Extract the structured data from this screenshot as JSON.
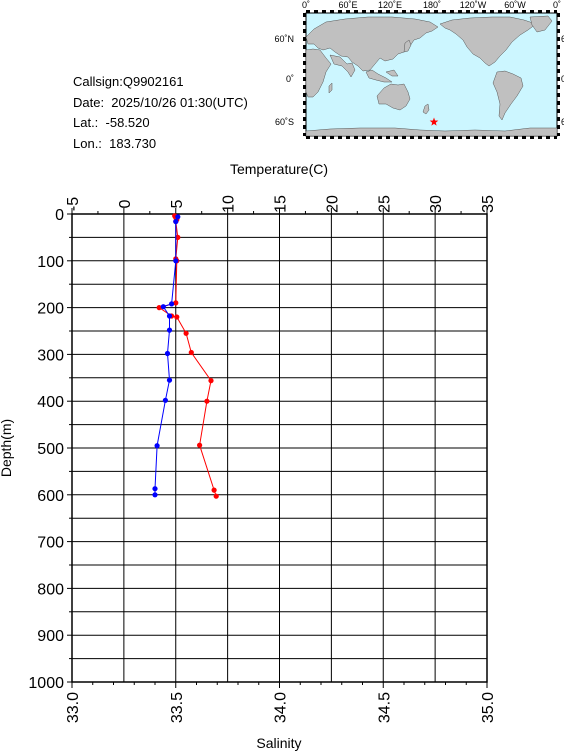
{
  "info": {
    "callsign": "Callsign:Q9902161",
    "date": "Date:  2025/10/26 01:30(UTC)",
    "lat": "Lat.:  -58.520",
    "lon": "Lon.:  183.730"
  },
  "map": {
    "lon_labels": [
      "0˚",
      "60˚E",
      "120˚E",
      "180˚",
      "120˚W",
      "60˚W",
      "0˚"
    ],
    "lat_labels": [
      "60˚N",
      "0˚",
      "60˚S"
    ],
    "marker": "star",
    "marker_color": "#ff0000",
    "ocean_color": "#ccf6ff",
    "land_color": "#c0c0c0"
  },
  "chart_data": {
    "type": "line",
    "title": "",
    "xlabel_top": "Temperature(C)",
    "xlabel_bottom": "Salinity",
    "ylabel": "Depth(m)",
    "temperature_ticks": [
      "-5",
      "0",
      "5",
      "10",
      "15",
      "20",
      "25",
      "30",
      "35"
    ],
    "salinity_ticks": [
      "33.0",
      "33.5",
      "34.0",
      "34.5",
      "35.0"
    ],
    "depth_ticks": [
      "0",
      "100",
      "200",
      "300",
      "400",
      "500",
      "600",
      "700",
      "800",
      "900",
      "1000"
    ],
    "temperature_range": [
      -5,
      35
    ],
    "salinity_range": [
      33.0,
      35.0
    ],
    "depth_range": [
      0,
      1000
    ],
    "grid": true,
    "series": [
      {
        "name": "",
        "axis": "temperature",
        "color": "#ff0000",
        "points": [
          [
            4.9,
            4
          ],
          [
            5.0,
            8
          ],
          [
            5.1,
            12
          ],
          [
            5.0,
            16
          ],
          [
            5.2,
            50
          ],
          [
            5.0,
            96
          ],
          [
            5.1,
            100
          ],
          [
            5.0,
            190
          ],
          [
            3.4,
            200
          ],
          [
            4.6,
            218
          ],
          [
            5.1,
            220
          ],
          [
            6.0,
            255
          ],
          [
            6.5,
            296
          ],
          [
            8.4,
            356
          ],
          [
            8.0,
            400
          ],
          [
            7.3,
            494
          ],
          [
            8.7,
            590
          ],
          [
            8.9,
            603
          ]
        ]
      },
      {
        "name": "",
        "axis": "salinity",
        "color": "#0000ff",
        "points": [
          [
            33.51,
            6
          ],
          [
            33.5,
            16
          ],
          [
            33.5,
            100
          ],
          [
            33.48,
            192
          ],
          [
            33.44,
            198
          ],
          [
            33.47,
            218
          ],
          [
            33.47,
            248
          ],
          [
            33.46,
            298
          ],
          [
            33.47,
            355
          ],
          [
            33.45,
            398
          ],
          [
            33.41,
            495
          ],
          [
            33.4,
            587
          ],
          [
            33.4,
            600
          ]
        ]
      }
    ]
  }
}
